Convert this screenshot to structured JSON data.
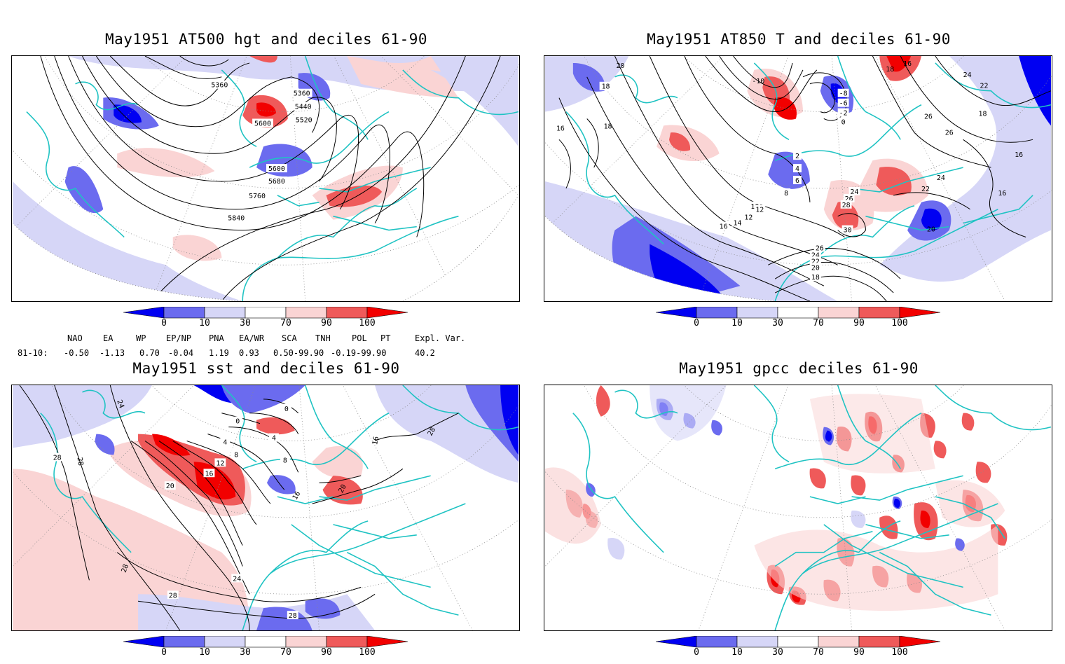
{
  "panels": {
    "hgt500": {
      "title": "May1951 AT500 hgt and deciles 61-90",
      "contour_labels": [
        "5360",
        "5360",
        "5440",
        "5520",
        "5600",
        "5600",
        "5680",
        "5760",
        "5840"
      ]
    },
    "t850": {
      "title": "May1951 AT850 T and deciles 61-90",
      "contour_labels": [
        "20",
        "18",
        "16",
        "18",
        "-10",
        "-8",
        "-6",
        "-2",
        "0",
        "2",
        "4",
        "6",
        "8",
        "10",
        "12",
        "14",
        "16",
        "16",
        "18",
        "24",
        "22",
        "26",
        "26",
        "18",
        "16",
        "24",
        "22",
        "16",
        "20",
        "24",
        "26",
        "28",
        "30",
        "26",
        "24",
        "22",
        "20",
        "18",
        "12"
      ]
    },
    "sst": {
      "title": "May1951 sst and deciles 61-90",
      "contour_labels": [
        "24",
        "28",
        "28",
        "20",
        "0",
        "0",
        "4",
        "4",
        "8",
        "8",
        "12",
        "16",
        "16",
        "16",
        "20",
        "28",
        "28",
        "24",
        "28",
        "28"
      ]
    },
    "gpcc": {
      "title": "May1951 gpcc deciles 61-90"
    }
  },
  "colorbar": {
    "labels": [
      "0",
      "10",
      "30",
      "70",
      "90",
      "100"
    ],
    "colors": [
      "#0000f2",
      "#6b6bef",
      "#d6d6f7",
      "#ffffff",
      "#fad4d4",
      "#ef5a5a",
      "#f20000"
    ]
  },
  "indices": {
    "headers": [
      "NAO",
      "EA",
      "WP",
      "EP/NP",
      "PNA",
      "EA/WR",
      "SCA",
      "TNH",
      "POL",
      "PT",
      "Expl. Var."
    ],
    "row_label": "81-10:",
    "values": [
      "-0.50",
      "-1.13",
      "0.70",
      "-0.04",
      "1.19",
      "0.93",
      "0.50-99.90",
      "-0.19-99.90",
      "40.2"
    ]
  },
  "colors": {
    "coast": "#1fc3c3",
    "contour": "#000000"
  }
}
